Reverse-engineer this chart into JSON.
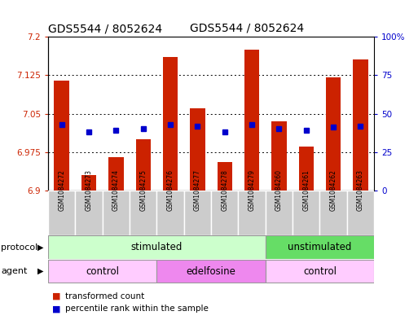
{
  "title": "GDS5544 / 8052624",
  "samples": [
    "GSM1084272",
    "GSM1084273",
    "GSM1084274",
    "GSM1084275",
    "GSM1084276",
    "GSM1084277",
    "GSM1084278",
    "GSM1084279",
    "GSM1084260",
    "GSM1084261",
    "GSM1084262",
    "GSM1084263"
  ],
  "transformed_count": [
    7.115,
    6.93,
    6.965,
    7.0,
    7.16,
    7.06,
    6.955,
    7.175,
    7.035,
    6.985,
    7.12,
    7.155
  ],
  "percentile_rank": [
    43,
    38,
    39,
    40,
    43,
    42,
    38,
    43,
    40,
    39,
    41,
    42
  ],
  "bar_color": "#cc2200",
  "dot_color": "#0000cc",
  "ylim": [
    6.9,
    7.2
  ],
  "yticks": [
    6.9,
    6.975,
    7.05,
    7.125,
    7.2
  ],
  "ytick_labels": [
    "6.9",
    "6.975",
    "7.05",
    "7.125",
    "7.2"
  ],
  "y2lim": [
    0,
    100
  ],
  "y2ticks": [
    0,
    25,
    50,
    75,
    100
  ],
  "y2tick_labels": [
    "0",
    "25",
    "50",
    "75",
    "100%"
  ],
  "protocol_groups": [
    {
      "label": "stimulated",
      "start": 0,
      "end": 8,
      "color": "#ccffcc"
    },
    {
      "label": "unstimulated",
      "start": 8,
      "end": 12,
      "color": "#66dd66"
    }
  ],
  "agent_groups": [
    {
      "label": "control",
      "start": 0,
      "end": 4,
      "color": "#ffccff"
    },
    {
      "label": "edelfosine",
      "start": 4,
      "end": 8,
      "color": "#ee88ee"
    },
    {
      "label": "control",
      "start": 8,
      "end": 12,
      "color": "#ffccff"
    }
  ],
  "legend_items": [
    {
      "label": "transformed count",
      "color": "#cc2200"
    },
    {
      "label": "percentile rank within the sample",
      "color": "#0000cc"
    }
  ],
  "bar_color_red": "#cc2200",
  "dot_color_blue": "#0000cc",
  "xlabel_color": "#cc2200",
  "y2label_color": "#0000cc",
  "sample_bg_color": "#cccccc",
  "plot_bg": "#ffffff"
}
